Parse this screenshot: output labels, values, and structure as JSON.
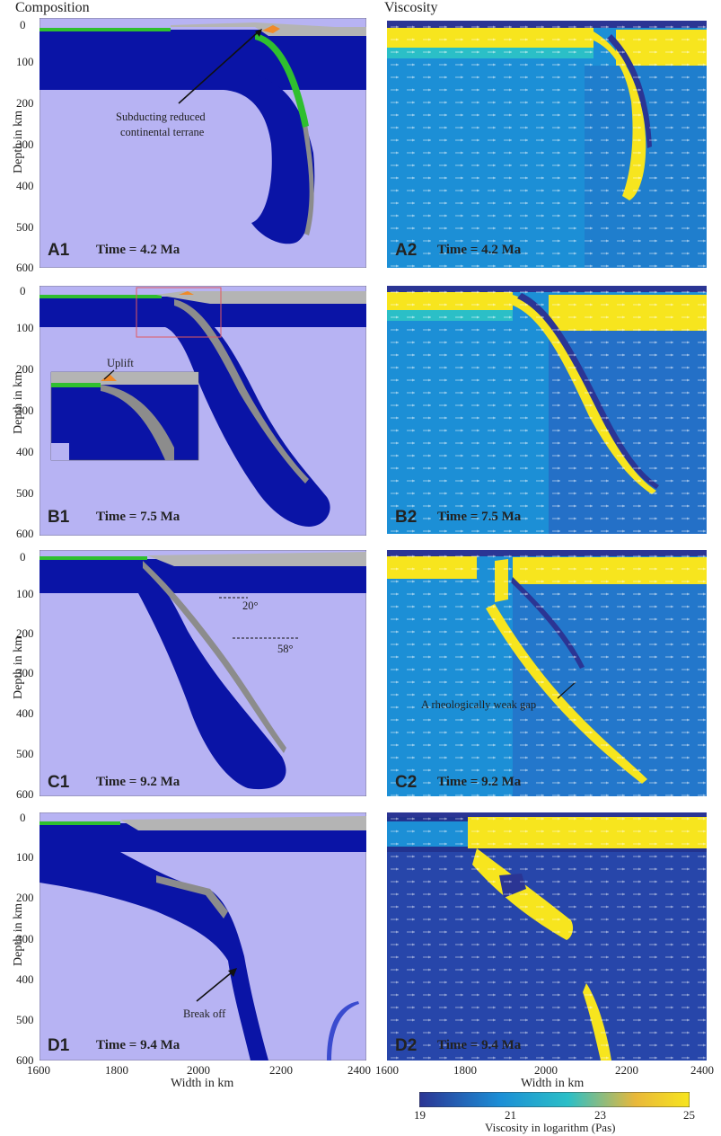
{
  "titles": {
    "left": "Composition",
    "right": "Viscosity"
  },
  "ylabel": "Depth in km",
  "xlabel": "Width in km",
  "y_ticks": [
    "0",
    "100",
    "200",
    "300",
    "400",
    "500",
    "600"
  ],
  "x_ticks": [
    "1600",
    "1800",
    "2000",
    "2200",
    "2400"
  ],
  "panels": {
    "a1": {
      "id": "A1",
      "time": "Time = 4.2 Ma"
    },
    "a2": {
      "id": "A2",
      "time": "Time = 4.2 Ma"
    },
    "b1": {
      "id": "B1",
      "time": "Time = 7.5 Ma"
    },
    "b2": {
      "id": "B2",
      "time": "Time = 7.5 Ma"
    },
    "c1": {
      "id": "C1",
      "time": "Time = 9.2 Ma"
    },
    "c2": {
      "id": "C2",
      "time": "Time = 9.2 Ma"
    },
    "d1": {
      "id": "D1",
      "time": "Time = 9.4 Ma"
    },
    "d2": {
      "id": "D2",
      "time": "Time = 9.4 Ma"
    }
  },
  "annotations": {
    "subducting_line1": "Subducting reduced",
    "subducting_line2": "continental terrane",
    "uplift": "Uplift",
    "angle1": "20°",
    "angle2": "58°",
    "weak_gap": "A rheologically weak gap",
    "break_off": "Break off"
  },
  "colorbar": {
    "label": "Viscosity in logarithm (Pas)",
    "ticks": [
      "19",
      "21",
      "23",
      "25"
    ],
    "range": [
      19,
      25
    ]
  },
  "colors": {
    "mantle": "#b7b3f3",
    "lithosphere": "#0a14a6",
    "crust_gray": "#b4b4b4",
    "crust_dark": "#8c8c8c",
    "green_sediment": "#2fbf2f",
    "orange_terrane": "#f08a2a",
    "visc_low": "#2b3594",
    "visc_mid": "#1c8fd6",
    "visc_high": "#f7e51e"
  }
}
